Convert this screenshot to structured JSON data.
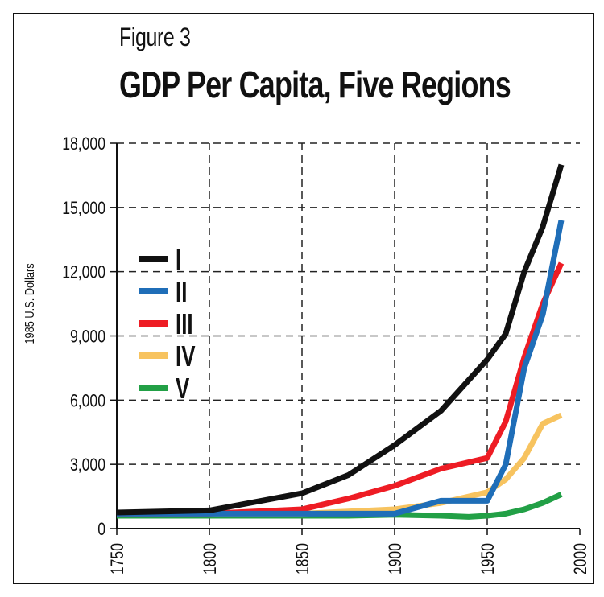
{
  "figure_label": "Figure 3",
  "chart_data": {
    "type": "line",
    "title": "GDP Per Capita, Five Regions",
    "xlabel": "",
    "ylabel": "1985 U.S. Dollars",
    "xlim": [
      1750,
      2000
    ],
    "ylim": [
      0,
      18000
    ],
    "x_ticks": [
      1750,
      1800,
      1850,
      1900,
      1950,
      2000
    ],
    "y_ticks": [
      0,
      3000,
      6000,
      9000,
      12000,
      15000,
      18000
    ],
    "y_tick_labels": [
      "0",
      "3,000",
      "6,000",
      "9,000",
      "12,000",
      "15,000",
      "18,000"
    ],
    "grid": true,
    "legend_position": "left",
    "series": [
      {
        "name": "I",
        "color": "#111111",
        "x": [
          1750,
          1800,
          1850,
          1875,
          1900,
          1925,
          1950,
          1960,
          1970,
          1980,
          1990
        ],
        "y": [
          750,
          850,
          1650,
          2500,
          3900,
          5500,
          7900,
          9100,
          12000,
          14100,
          17000
        ]
      },
      {
        "name": "II",
        "color": "#1f6eb8",
        "x": [
          1750,
          1800,
          1850,
          1900,
          1925,
          1950,
          1960,
          1970,
          1980,
          1990
        ],
        "y": [
          700,
          700,
          700,
          700,
          1300,
          1300,
          3000,
          7500,
          10000,
          14400
        ]
      },
      {
        "name": "III",
        "color": "#ee1c24",
        "x": [
          1750,
          1800,
          1850,
          1875,
          1900,
          1925,
          1950,
          1960,
          1970,
          1980,
          1990
        ],
        "y": [
          700,
          700,
          900,
          1400,
          2000,
          2800,
          3300,
          5000,
          8000,
          10500,
          12400
        ]
      },
      {
        "name": "IV",
        "color": "#f7c35f",
        "x": [
          1750,
          1800,
          1850,
          1900,
          1925,
          1950,
          1960,
          1970,
          1980,
          1990
        ],
        "y": [
          700,
          700,
          700,
          900,
          1200,
          1700,
          2300,
          3300,
          4900,
          5300
        ]
      },
      {
        "name": "V",
        "color": "#22a046",
        "x": [
          1750,
          1800,
          1850,
          1875,
          1900,
          1925,
          1940,
          1950,
          1960,
          1970,
          1980,
          1990
        ],
        "y": [
          600,
          600,
          600,
          600,
          650,
          600,
          550,
          600,
          700,
          900,
          1200,
          1600
        ]
      }
    ]
  }
}
